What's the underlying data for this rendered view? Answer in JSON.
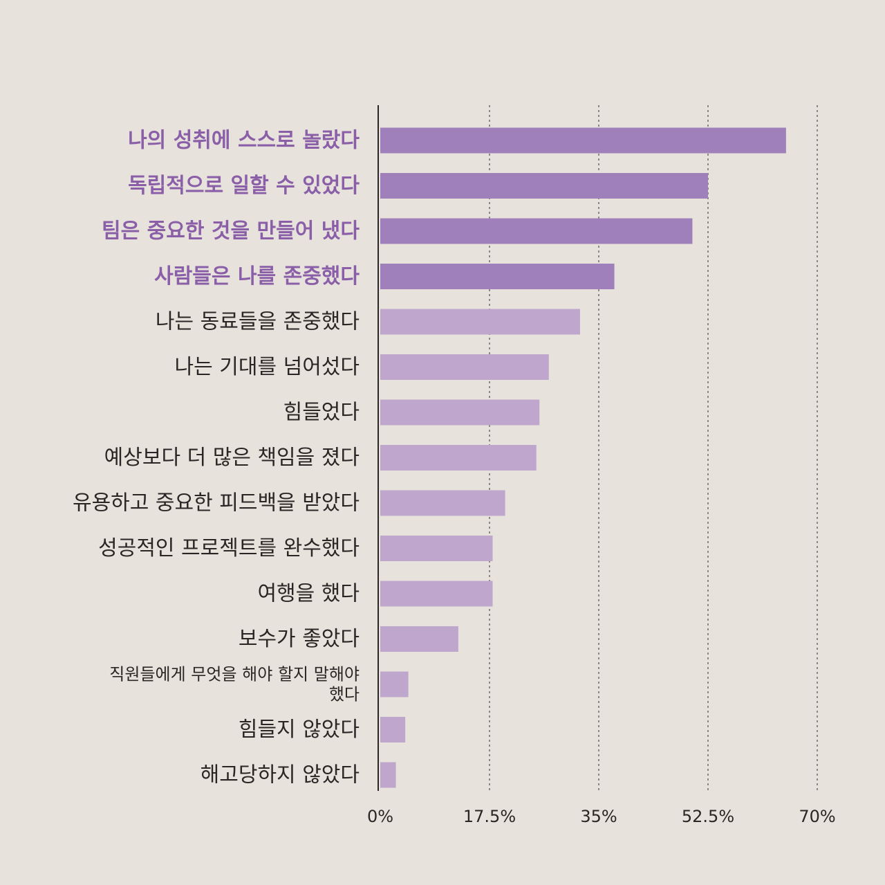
{
  "chart_data": {
    "type": "bar",
    "orientation": "horizontal",
    "categories": [
      "나의 성취에 스스로 놀랐다",
      "독립적으로 일할 수 있었다",
      "팀은 중요한 것을 만들어 냈다",
      "사람들은 나를 존중했다",
      "나는 동료들을 존중했다",
      "나는 기대를 넘어섰다",
      "힘들었다",
      "예상보다 더 많은 책임을 졌다",
      "유용하고 중요한 피드백을 받았다",
      "성공적인 프로젝트를 완수했다",
      "여행을 했다",
      "보수가 좋았다",
      "직원들에게 무엇을 해야 할지 말해야 했다",
      "힘들지 않았다",
      "해고당하지 않았다"
    ],
    "values": [
      65,
      52.5,
      50,
      37.5,
      32,
      27,
      25.5,
      25,
      20,
      18,
      18,
      12.5,
      4.5,
      4,
      2.5
    ],
    "highlighted": [
      true,
      true,
      true,
      true,
      false,
      false,
      false,
      false,
      false,
      false,
      false,
      false,
      false,
      false,
      false
    ],
    "xlim": [
      0,
      70
    ],
    "ticks": [
      "0%",
      "17.5%",
      "35%",
      "52.5%",
      "70%"
    ],
    "tick_values": [
      0,
      17.5,
      35,
      52.5,
      70
    ],
    "grid": true,
    "colors": {
      "highlight_bar": "#a080bb",
      "normal_bar": "#bfa6cc",
      "highlight_text": "#8a5fa8",
      "text": "#2a2626",
      "axis": "#2a2626",
      "grid": "#6e6a68"
    }
  }
}
